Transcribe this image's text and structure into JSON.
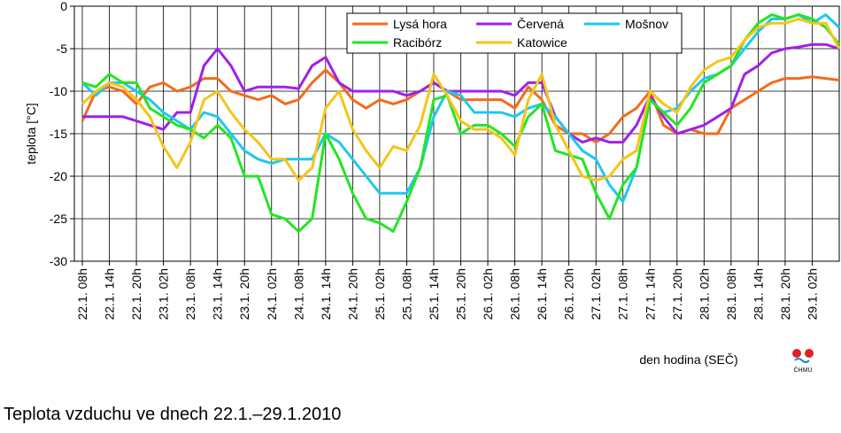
{
  "chart_data": {
    "type": "line",
    "caption": "Teplota vzduchu ve dnech 22.1.–29.1.2010",
    "y_label": "teplota [°C]",
    "x_label": "den hodina (SEČ)",
    "source": "ČHMÚ",
    "ylim": [
      -30,
      0
    ],
    "yticks": [
      0,
      -5,
      -10,
      -15,
      -20,
      -25,
      -30
    ],
    "grid": true,
    "categories": [
      "22.1. 08h",
      null,
      "22.1. 14h",
      null,
      "22.1. 20h",
      null,
      "23.1. 02h",
      null,
      "23.1. 08h",
      null,
      "23.1. 14h",
      null,
      "23.1. 20h",
      null,
      "24.1. 02h",
      null,
      "24.1. 08h",
      null,
      "24.1. 14h",
      null,
      "24.1. 20h",
      null,
      "25.1. 02h",
      null,
      "25.1. 08h",
      null,
      "25.1. 14h",
      null,
      "25.1. 20h",
      null,
      "26.1. 02h",
      null,
      "26.1. 08h",
      null,
      "26.1. 14h",
      null,
      "26.1. 20h",
      null,
      "27.1. 02h",
      null,
      "27.1. 08h",
      null,
      "27.1. 14h",
      null,
      "27.1. 20h",
      null,
      "28.1. 02h",
      null,
      "28.1. 08h",
      null,
      "28.1. 14h",
      null,
      "28.1. 20h",
      null,
      "29.1. 02h",
      null,
      null
    ],
    "series": [
      {
        "name": "Lysá hora",
        "color": "#f26c1c",
        "values": [
          -13.5,
          -10,
          -9.5,
          -10,
          -11.5,
          -9.5,
          -9,
          -10,
          -9.5,
          -8.5,
          -8.5,
          -10,
          -10.5,
          -11,
          -10.5,
          -11.5,
          -11,
          -9,
          -7.5,
          -9,
          -11,
          -12,
          -11,
          -11.5,
          -11,
          -10,
          -9,
          -10,
          -11,
          -11,
          -11,
          -11,
          -12,
          -9.5,
          -11,
          -14,
          -15,
          -15,
          -16,
          -15,
          -13,
          -12,
          -10,
          -14,
          -15,
          -14.5,
          -15,
          -15,
          -12,
          -11,
          -10,
          -9,
          -8.5,
          -8.5,
          -8.3,
          -8.5,
          -8.7
        ]
      },
      {
        "name": "Červená",
        "color": "#a020e8",
        "values": [
          -13,
          -13,
          -13,
          -13,
          -13.5,
          -14,
          -14.5,
          -12.5,
          -12.5,
          -7,
          -5,
          -7,
          -10,
          -9.5,
          -9.5,
          -9.5,
          -9.7,
          -7,
          -6,
          -9,
          -10,
          -10,
          -10,
          -10,
          -10.5,
          -10,
          -9,
          -10,
          -10,
          -10,
          -10,
          -10,
          -10.5,
          -9,
          -9,
          -13,
          -15,
          -16,
          -15.5,
          -16,
          -16,
          -14,
          -10.5,
          -13,
          -15,
          -14.5,
          -14,
          -13,
          -12,
          -8,
          -7,
          -5.5,
          -5,
          -4.8,
          -4.5,
          -4.5,
          -5
        ]
      },
      {
        "name": "Mošnov",
        "color": "#1ec8f0",
        "values": [
          -9,
          -10.5,
          -9,
          -9,
          -10,
          -11,
          -12.5,
          -13.5,
          -14.5,
          -12.5,
          -13,
          -15,
          -17,
          -18,
          -18.5,
          -18,
          -18,
          -18,
          -15,
          -16,
          -18,
          -20,
          -22,
          -22,
          -22,
          -19,
          -13,
          -10,
          -10.5,
          -12.5,
          -12.5,
          -12.5,
          -13,
          -12,
          -11.5,
          -13,
          -15,
          -17,
          -18,
          -21,
          -23,
          -19,
          -11,
          -12.5,
          -12,
          -10,
          -8.5,
          -8,
          -7,
          -5,
          -3,
          -1.5,
          -1.5,
          -1,
          -2,
          -1,
          -2.5
        ]
      },
      {
        "name": "Racibórz",
        "color": "#22e622",
        "values": [
          -9,
          -9.5,
          -8,
          -9,
          -9,
          -12,
          -13,
          -14,
          -14.5,
          -15.5,
          -14,
          -15.5,
          -20,
          -20,
          -24.5,
          -25,
          -26.5,
          -25,
          -15,
          -18,
          -22,
          -25,
          -25.5,
          -26.5,
          -23,
          -19,
          -11,
          -10.5,
          -15,
          -14,
          -14,
          -15,
          -16.5,
          -13,
          -11.5,
          -17,
          -17.5,
          -18,
          -22,
          -25,
          -21,
          -19,
          -11,
          -12.5,
          -14,
          -12,
          -9,
          -8,
          -7,
          -4,
          -2,
          -1,
          -1.5,
          -1,
          -1.5,
          -2.5,
          -4.5
        ]
      },
      {
        "name": "Katowice",
        "color": "#f5c518",
        "values": [
          -11.5,
          -10,
          -9,
          -9.5,
          -11,
          -13,
          -16.5,
          -19,
          -16,
          -11,
          -10,
          -12.5,
          -14.5,
          -16,
          -18,
          -18,
          -20.5,
          -19,
          -12,
          -10,
          -14.5,
          -17,
          -19,
          -16.5,
          -17,
          -14,
          -8,
          -10.5,
          -13.5,
          -14.5,
          -14.5,
          -15.5,
          -17.5,
          -11,
          -8,
          -14,
          -17,
          -20,
          -20.5,
          -20,
          -18,
          -17,
          -10,
          -11.5,
          -12.5,
          -9.5,
          -7.5,
          -6.5,
          -6,
          -4,
          -2.5,
          -2,
          -2,
          -1.5,
          -2,
          -2,
          -5
        ]
      }
    ]
  }
}
